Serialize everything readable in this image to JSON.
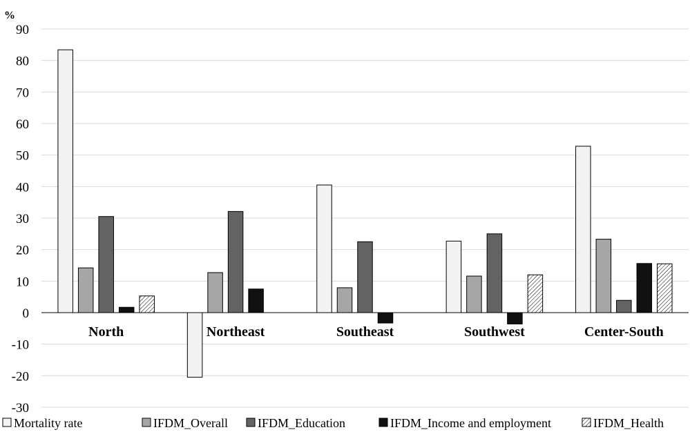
{
  "chart_data": {
    "type": "bar",
    "unit_label": "%",
    "categories": [
      "North",
      "Northeast",
      "Southeast",
      "Southwest",
      "Center-South"
    ],
    "series": [
      {
        "name": "Mortality rate",
        "values": [
          83.4,
          -20.5,
          40.5,
          22.7,
          52.8
        ],
        "fill": "#f2f2f2",
        "pattern": "none"
      },
      {
        "name": "IFDM_Overall",
        "values": [
          14.2,
          12.7,
          7.9,
          11.6,
          23.3
        ],
        "fill": "#a6a6a6",
        "pattern": "none"
      },
      {
        "name": "IFDM_Education",
        "values": [
          30.5,
          32.1,
          22.5,
          25.0,
          3.9
        ],
        "fill": "#636363",
        "pattern": "none"
      },
      {
        "name": "IFDM_Income and employment",
        "values": [
          1.7,
          7.5,
          -3.3,
          -3.6,
          15.6
        ],
        "fill": "#111111",
        "pattern": "none"
      },
      {
        "name": "IFDM_Health",
        "values": [
          5.3,
          0,
          0,
          12.0,
          15.5
        ],
        "fill": "#ffffff",
        "pattern": "diagonal-hatch"
      }
    ],
    "ylim": [
      -30,
      90
    ],
    "yticks": [
      90,
      80,
      70,
      60,
      50,
      40,
      30,
      20,
      10,
      0,
      -10,
      -20,
      -30
    ],
    "grid": true,
    "legend_position": "bottom"
  }
}
